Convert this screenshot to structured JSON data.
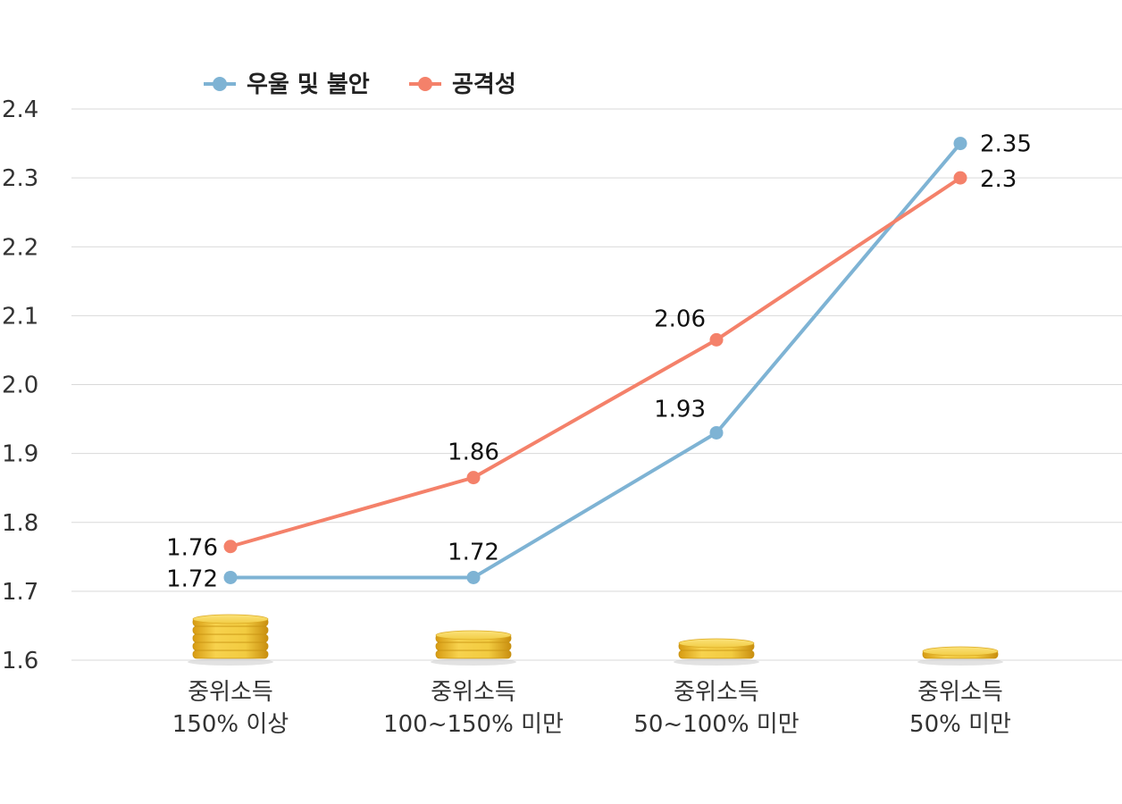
{
  "chart_data": {
    "type": "line",
    "categories": [
      [
        "중위소득",
        "150% 이상"
      ],
      [
        "중위소득",
        "100~150% 미만"
      ],
      [
        "중위소득",
        "50~100% 미만"
      ],
      [
        "중위소득",
        "50% 미만"
      ]
    ],
    "series": [
      {
        "name": "우울 및 불안",
        "color": "#7eb3d4",
        "values": [
          1.72,
          1.72,
          1.93,
          2.35
        ],
        "labels": [
          "1.72",
          "1.72",
          "1.93",
          "2.35"
        ]
      },
      {
        "name": "공격성",
        "color": "#f4816a",
        "values": [
          1.765,
          1.865,
          2.065,
          2.3
        ],
        "labels": [
          "1.76",
          "1.86",
          "2.06",
          "2.3"
        ]
      }
    ],
    "ylim": [
      1.6,
      2.4
    ],
    "yticks": [
      "1.6",
      "1.7",
      "1.8",
      "1.9",
      "2.0",
      "2.1",
      "2.2",
      "2.3",
      "2.4"
    ],
    "grid": true,
    "legend_position": "top-left",
    "decoration": {
      "type": "coin-stacks",
      "coin_counts": [
        5,
        3,
        2,
        1
      ],
      "color": "#f0c842"
    }
  }
}
